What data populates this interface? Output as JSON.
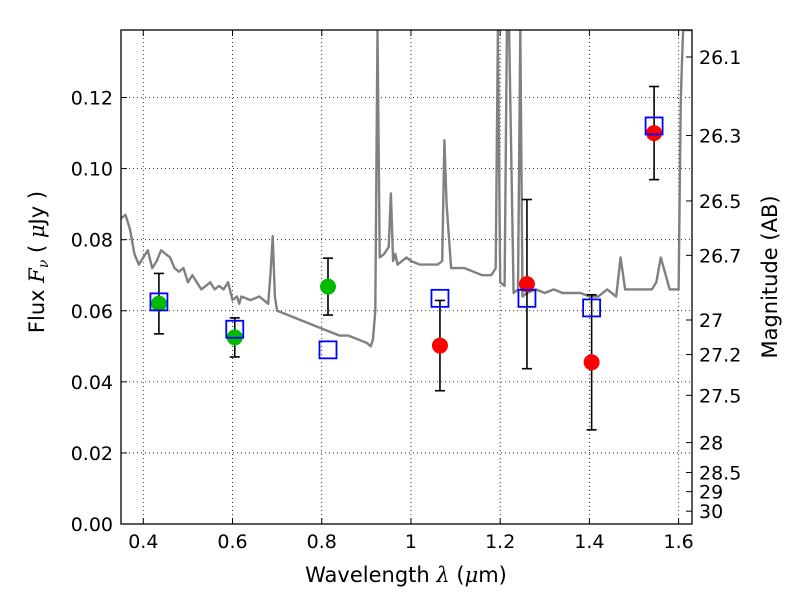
{
  "chart_data": {
    "type": "scatter",
    "title": "",
    "xlabel": "Wavelength  λ (μm)",
    "ylabel": "Flux  Fν  ( μJy )",
    "ylabel_right": "Magnitude (AB)",
    "xlim": [
      0.35,
      1.63
    ],
    "ylim": [
      0.0,
      0.139
    ],
    "grid": true,
    "grid_style": "dotted",
    "x_ticks": [
      0.4,
      0.6,
      0.8,
      1.0,
      1.2,
      1.4,
      1.6
    ],
    "x_tick_labels": [
      "0.4",
      "0.6",
      "0.8",
      "1",
      "1.2",
      "1.4",
      "1.6"
    ],
    "y_ticks": [
      0.0,
      0.02,
      0.04,
      0.06,
      0.08,
      0.1,
      0.12
    ],
    "y_tick_labels": [
      "0.00",
      "0.02",
      "0.04",
      "0.06",
      "0.08",
      "0.10",
      "0.12"
    ],
    "right_ticks": [
      {
        "flux": 0.1314,
        "label": "26.1"
      },
      {
        "flux": 0.1093,
        "label": "26.3"
      },
      {
        "flux": 0.0909,
        "label": "26.5"
      },
      {
        "flux": 0.0756,
        "label": "26.7"
      },
      {
        "flux": 0.0574,
        "label": "27"
      },
      {
        "flux": 0.0477,
        "label": "27.2"
      },
      {
        "flux": 0.0362,
        "label": "27.5"
      },
      {
        "flux": 0.0229,
        "label": "28"
      },
      {
        "flux": 0.0145,
        "label": "28.5"
      },
      {
        "flux": 0.0091,
        "label": "29"
      },
      {
        "flux": 0.0036,
        "label": "30"
      }
    ],
    "series": [
      {
        "color": "#808080",
        "style": "line",
        "x": [
          0.35,
          0.36,
          0.37,
          0.38,
          0.39,
          0.4,
          0.41,
          0.42,
          0.43,
          0.44,
          0.45,
          0.46,
          0.47,
          0.48,
          0.49,
          0.5,
          0.51,
          0.52,
          0.53,
          0.54,
          0.55,
          0.56,
          0.57,
          0.58,
          0.59,
          0.6,
          0.61,
          0.615,
          0.62,
          0.64,
          0.66,
          0.68,
          0.685,
          0.69,
          0.695,
          0.7,
          0.72,
          0.74,
          0.76,
          0.78,
          0.8,
          0.82,
          0.84,
          0.86,
          0.88,
          0.9,
          0.91,
          0.915,
          0.92,
          0.925,
          0.93,
          0.94,
          0.95,
          0.955,
          0.96,
          0.965,
          0.97,
          0.98,
          0.99,
          1.0,
          1.02,
          1.04,
          1.06,
          1.07,
          1.075,
          1.08,
          1.09,
          1.1,
          1.12,
          1.14,
          1.16,
          1.18,
          1.19,
          1.195,
          1.2,
          1.21,
          1.215,
          1.22,
          1.23,
          1.24,
          1.245,
          1.25,
          1.26,
          1.28,
          1.3,
          1.32,
          1.34,
          1.36,
          1.38,
          1.4,
          1.42,
          1.44,
          1.46,
          1.47,
          1.48,
          1.5,
          1.52,
          1.54,
          1.55,
          1.56,
          1.58,
          1.6,
          1.605,
          1.61,
          1.63
        ],
        "y": [
          0.086,
          0.087,
          0.083,
          0.076,
          0.073,
          0.075,
          0.077,
          0.072,
          0.074,
          0.077,
          0.076,
          0.075,
          0.072,
          0.071,
          0.072,
          0.068,
          0.07,
          0.068,
          0.066,
          0.067,
          0.068,
          0.066,
          0.067,
          0.066,
          0.068,
          0.063,
          0.064,
          0.062,
          0.064,
          0.063,
          0.064,
          0.062,
          0.07,
          0.081,
          0.064,
          0.06,
          0.059,
          0.058,
          0.057,
          0.056,
          0.055,
          0.054,
          0.053,
          0.053,
          0.052,
          0.051,
          0.05,
          0.052,
          0.06,
          0.139,
          0.075,
          0.076,
          0.078,
          0.093,
          0.074,
          0.076,
          0.073,
          0.074,
          0.075,
          0.074,
          0.073,
          0.073,
          0.073,
          0.074,
          0.108,
          0.09,
          0.072,
          0.072,
          0.072,
          0.071,
          0.07,
          0.07,
          0.072,
          0.139,
          0.068,
          0.067,
          0.139,
          0.139,
          0.065,
          0.066,
          0.139,
          0.064,
          0.065,
          0.066,
          0.065,
          0.066,
          0.065,
          0.065,
          0.065,
          0.064,
          0.064,
          0.066,
          0.064,
          0.075,
          0.066,
          0.066,
          0.066,
          0.066,
          0.068,
          0.075,
          0.066,
          0.066,
          0.12,
          0.139,
          0.139
        ]
      },
      {
        "color": "#00bb00",
        "marker": "circle",
        "points": [
          {
            "x": 0.435,
            "y": 0.062,
            "err": 0.0085
          },
          {
            "x": 0.605,
            "y": 0.0525,
            "err": 0.0055
          },
          {
            "x": 0.814,
            "y": 0.0668,
            "err": 0.008
          }
        ]
      },
      {
        "color": "#ff0000",
        "marker": "circle",
        "points": [
          {
            "x": 1.065,
            "y": 0.0502,
            "err": 0.0127
          },
          {
            "x": 1.26,
            "y": 0.0675,
            "err": 0.0238
          },
          {
            "x": 1.405,
            "y": 0.0455,
            "err": 0.019
          },
          {
            "x": 1.545,
            "y": 0.11,
            "err": 0.0131
          }
        ]
      },
      {
        "color": "#0000ff",
        "marker": "square-open",
        "points": [
          {
            "x": 0.435,
            "y": 0.0625
          },
          {
            "x": 0.605,
            "y": 0.0548
          },
          {
            "x": 0.814,
            "y": 0.049
          },
          {
            "x": 1.065,
            "y": 0.0635
          },
          {
            "x": 1.26,
            "y": 0.0635
          },
          {
            "x": 1.405,
            "y": 0.0608
          },
          {
            "x": 1.545,
            "y": 0.112
          }
        ]
      }
    ]
  }
}
